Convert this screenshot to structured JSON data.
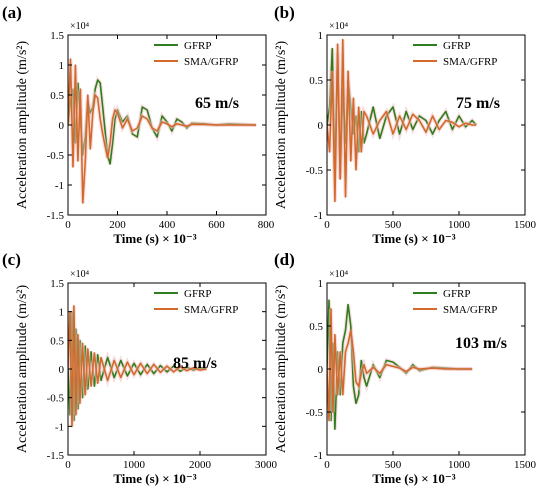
{
  "colors": {
    "GFRP": "#2e7d1f",
    "SMA_GFRP": "#d3692a",
    "shadow": "#f3c2c2"
  },
  "chart_data": [
    {
      "type": "line",
      "panel": "(a)",
      "speed_label": "65 m/s",
      "exponent": "×10⁴",
      "ylabel": "Acceleration amplitude (m/s²)",
      "xlabel": "Time (s) × 10⁻³",
      "xlim": [
        0,
        800
      ],
      "ylim": [
        -1.5,
        1.5
      ],
      "xticks": [
        0,
        200,
        400,
        600,
        800
      ],
      "xtick_labels": [
        "0",
        "200",
        "400",
        "600",
        "800"
      ],
      "yticks": [
        -1.5,
        -1,
        -0.5,
        0,
        0.5,
        1,
        1.5
      ],
      "ytick_labels": [
        "-1.5",
        "-1",
        "-0.5",
        "0",
        "0.5",
        "1",
        "1.5"
      ],
      "legend_position": "top-right",
      "series": [
        {
          "name": "GFRP",
          "color_key": "GFRP",
          "x": [
            0,
            10,
            20,
            30,
            40,
            50,
            60,
            70,
            80,
            90,
            100,
            110,
            120,
            130,
            140,
            150,
            160,
            170,
            180,
            190,
            200,
            220,
            240,
            260,
            280,
            300,
            320,
            340,
            360,
            380,
            400,
            420,
            440,
            460,
            480,
            500,
            550,
            600,
            650,
            700,
            760
          ],
          "y": [
            0,
            0.4,
            0.6,
            -0.3,
            0.7,
            0.1,
            -0.5,
            -0.2,
            0.4,
            0.2,
            0.3,
            0.6,
            0.75,
            0.7,
            0.3,
            -0.1,
            -0.5,
            -0.65,
            -0.3,
            0.1,
            0.25,
            0.05,
            0.15,
            -0.15,
            -0.2,
            0.3,
            0.25,
            -0.05,
            -0.2,
            0.15,
            0.05,
            -0.1,
            0.1,
            0.05,
            -0.05,
            0.03,
            0.02,
            0,
            0.02,
            0.01,
            0
          ]
        },
        {
          "name": "SMA/GFRP",
          "color_key": "SMA_GFRP",
          "x": [
            0,
            10,
            20,
            30,
            40,
            50,
            60,
            70,
            80,
            90,
            100,
            110,
            120,
            130,
            140,
            150,
            160,
            170,
            180,
            190,
            200,
            220,
            240,
            260,
            280,
            300,
            320,
            340,
            360,
            380,
            400,
            420,
            440,
            460,
            480,
            500,
            550,
            600,
            650,
            700,
            760
          ],
          "y": [
            0,
            1.1,
            -0.7,
            1.0,
            -0.6,
            0.6,
            -1.3,
            -0.6,
            0.5,
            -0.4,
            0.2,
            0.5,
            0.45,
            0.1,
            -0.15,
            -0.35,
            -0.55,
            -0.3,
            0.1,
            0.25,
            0.2,
            -0.05,
            0.1,
            -0.1,
            -0.05,
            0.15,
            0.1,
            -0.05,
            -0.1,
            0.05,
            0.02,
            -0.03,
            0.02,
            0,
            -0.02,
            0.01,
            0.01,
            0,
            0,
            0,
            0
          ]
        }
      ]
    },
    {
      "type": "line",
      "panel": "(b)",
      "speed_label": "75 m/s",
      "exponent": "×10⁴",
      "ylabel": "Acceleration amplitude (m/s²)",
      "xlabel": "Time (s) × 10⁻³",
      "xlim": [
        0,
        1500
      ],
      "ylim": [
        -1,
        1
      ],
      "xticks": [
        0,
        500,
        1000,
        1500
      ],
      "xtick_labels": [
        "0",
        "500",
        "1000",
        "1500"
      ],
      "yticks": [
        -1,
        -0.5,
        0,
        0.5,
        1
      ],
      "ytick_labels": [
        "-1",
        "-0.5",
        "0",
        "0.5",
        "1"
      ],
      "legend_position": "top-right",
      "series": [
        {
          "name": "GFRP",
          "color_key": "GFRP",
          "x": [
            0,
            20,
            40,
            60,
            80,
            100,
            120,
            140,
            160,
            180,
            200,
            220,
            240,
            260,
            280,
            300,
            350,
            400,
            450,
            500,
            550,
            600,
            650,
            700,
            750,
            800,
            850,
            900,
            950,
            1000,
            1050,
            1100,
            1130
          ],
          "y": [
            0,
            0.2,
            0.85,
            -0.5,
            0.8,
            -0.6,
            0.4,
            -0.2,
            0.5,
            0.2,
            -0.1,
            0.1,
            -0.3,
            0.15,
            -0.2,
            -0.1,
            0.2,
            -0.15,
            0.1,
            0.2,
            -0.1,
            0.15,
            -0.05,
            0.1,
            0.05,
            -0.1,
            0.05,
            0.15,
            -0.05,
            0.1,
            -0.02,
            0.05,
            0
          ]
        },
        {
          "name": "SMA/GFRP",
          "color_key": "SMA_GFRP",
          "x": [
            0,
            20,
            40,
            60,
            80,
            100,
            120,
            140,
            160,
            180,
            200,
            220,
            240,
            260,
            280,
            300,
            350,
            400,
            450,
            500,
            550,
            600,
            650,
            700,
            750,
            800,
            850,
            900,
            950,
            1000,
            1050,
            1100,
            1130
          ],
          "y": [
            0,
            -0.3,
            0.6,
            -0.85,
            0.9,
            -0.6,
            0.95,
            -0.8,
            0.6,
            -0.4,
            0.3,
            -0.5,
            0.2,
            -0.3,
            0.15,
            0.1,
            -0.1,
            0.05,
            0.15,
            -0.1,
            0.1,
            -0.05,
            0.12,
            0.05,
            -0.08,
            0.1,
            -0.05,
            0.05,
            0.03,
            -0.02,
            0.02,
            0,
            0
          ]
        }
      ]
    },
    {
      "type": "line",
      "panel": "(c)",
      "speed_label": "85 m/s",
      "exponent": "×10⁴",
      "ylabel": "Acceleration amplitude (m/s²)",
      "xlabel": "Time (s) × 10⁻³",
      "xlim": [
        0,
        3000
      ],
      "ylim": [
        -1.5,
        1.5
      ],
      "xticks": [
        0,
        1000,
        2000,
        3000
      ],
      "xtick_labels": [
        "0",
        "1000",
        "2000",
        "3000"
      ],
      "yticks": [
        -1.5,
        -1,
        -0.5,
        0,
        0.5,
        1,
        1.5
      ],
      "ytick_labels": [
        "-1.5",
        "-1",
        "-0.5",
        "0",
        "0.5",
        "1",
        "1.5"
      ],
      "legend_position": "top-right",
      "series": [
        {
          "name": "GFRP",
          "color_key": "GFRP",
          "x": [
            0,
            30,
            60,
            90,
            120,
            150,
            180,
            220,
            260,
            300,
            350,
            400,
            450,
            500,
            600,
            700,
            800,
            900,
            1000,
            1100,
            1200,
            1300,
            1400,
            1500,
            1600,
            1700,
            1800,
            1900,
            2000,
            2100
          ],
          "y": [
            0,
            -0.8,
            1.0,
            -0.9,
            0.7,
            -0.7,
            0.5,
            -0.5,
            0.4,
            -0.35,
            0.3,
            -0.3,
            0.25,
            -0.2,
            0.2,
            -0.15,
            0.15,
            -0.12,
            0.1,
            -0.1,
            0.08,
            -0.08,
            0.06,
            -0.05,
            0.05,
            -0.04,
            0.03,
            -0.02,
            0.02,
            0
          ]
        },
        {
          "name": "SMA/GFRP",
          "color_key": "SMA_GFRP",
          "x": [
            0,
            30,
            60,
            90,
            120,
            150,
            180,
            220,
            260,
            300,
            350,
            400,
            450,
            500,
            600,
            700,
            800,
            900,
            1000,
            1100,
            1200,
            1300,
            1400,
            1500,
            1600,
            1700,
            1800,
            1900,
            2000,
            2100
          ],
          "y": [
            0,
            1.0,
            -1.0,
            1.1,
            -0.8,
            0.6,
            -0.6,
            0.45,
            -0.45,
            0.35,
            -0.3,
            0.28,
            -0.25,
            0.2,
            -0.2,
            0.15,
            -0.15,
            0.12,
            -0.1,
            0.1,
            -0.08,
            0.08,
            -0.06,
            0.05,
            -0.05,
            0.04,
            -0.03,
            0.02,
            -0.02,
            0
          ]
        }
      ]
    },
    {
      "type": "line",
      "panel": "(d)",
      "speed_label": "103 m/s",
      "exponent": "×10⁴",
      "ylabel": "Acceleration amplitude (m/s²)",
      "xlabel": "Time (s) × 10⁻³",
      "xlim": [
        0,
        1500
      ],
      "ylim": [
        -1,
        1
      ],
      "xticks": [
        0,
        500,
        1000,
        1500
      ],
      "xtick_labels": [
        "0",
        "500",
        "1000",
        "1500"
      ],
      "yticks": [
        -1,
        -0.5,
        0,
        0.5,
        1
      ],
      "ytick_labels": [
        "-1",
        "-0.5",
        "0",
        "0.5",
        "1"
      ],
      "legend_position": "top-right",
      "series": [
        {
          "name": "GFRP",
          "color_key": "GFRP",
          "x": [
            0,
            15,
            30,
            45,
            60,
            80,
            100,
            120,
            140,
            160,
            180,
            200,
            220,
            240,
            260,
            280,
            300,
            350,
            400,
            450,
            500,
            550,
            600,
            650,
            700,
            800,
            900,
            1000,
            1100
          ],
          "y": [
            0,
            0.8,
            -0.6,
            0.3,
            -0.7,
            0.2,
            -0.3,
            0.3,
            0.45,
            0.75,
            0.5,
            -0.2,
            -0.4,
            -0.3,
            0.1,
            -0.1,
            -0.2,
            0.05,
            -0.1,
            0.1,
            0.08,
            0.02,
            -0.05,
            0.05,
            -0.02,
            0.02,
            0.01,
            0,
            0
          ]
        },
        {
          "name": "SMA/GFRP",
          "color_key": "SMA_GFRP",
          "x": [
            0,
            15,
            30,
            45,
            60,
            80,
            100,
            120,
            140,
            160,
            180,
            200,
            220,
            240,
            260,
            280,
            300,
            350,
            400,
            450,
            500,
            550,
            600,
            650,
            700,
            800,
            900,
            1000,
            1100
          ],
          "y": [
            0,
            -0.6,
            0.7,
            -0.5,
            0.4,
            -0.3,
            0.2,
            -0.3,
            0.2,
            0.3,
            0.45,
            0.2,
            -0.15,
            -0.2,
            -0.05,
            0.05,
            -0.05,
            0.02,
            -0.05,
            0.05,
            0.03,
            0.01,
            -0.03,
            0.02,
            0,
            0.01,
            0,
            0,
            0
          ]
        }
      ]
    }
  ]
}
